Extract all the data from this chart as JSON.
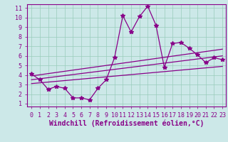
{
  "title": "",
  "xlabel": "Windchill (Refroidissement éolien,°C)",
  "bg_color": "#cce8e8",
  "line_color": "#880088",
  "xlim": [
    -0.5,
    23.4
  ],
  "ylim": [
    0.7,
    11.4
  ],
  "xticks": [
    0,
    1,
    2,
    3,
    4,
    5,
    6,
    7,
    8,
    9,
    10,
    11,
    12,
    13,
    14,
    15,
    16,
    17,
    18,
    19,
    20,
    21,
    22,
    23
  ],
  "yticks": [
    1,
    2,
    3,
    4,
    5,
    6,
    7,
    8,
    9,
    10,
    11
  ],
  "main_x": [
    0,
    1,
    2,
    3,
    4,
    5,
    6,
    7,
    8,
    9,
    10,
    11,
    12,
    13,
    14,
    15,
    16,
    17,
    18,
    19,
    20,
    21,
    22,
    23
  ],
  "main_y": [
    4.1,
    3.5,
    2.5,
    2.8,
    2.6,
    1.6,
    1.6,
    1.4,
    2.6,
    3.5,
    5.8,
    10.2,
    8.5,
    10.1,
    11.2,
    9.2,
    4.8,
    7.3,
    7.4,
    6.8,
    6.1,
    5.3,
    5.8,
    5.6
  ],
  "line1_x": [
    0,
    23
  ],
  "line1_y": [
    3.1,
    4.9
  ],
  "line2_x": [
    0,
    23
  ],
  "line2_y": [
    3.5,
    6.0
  ],
  "line3_x": [
    0,
    23
  ],
  "line3_y": [
    3.9,
    6.7
  ],
  "marker": "*",
  "markersize": 4,
  "linewidth": 0.9,
  "grid_color": "#99ccbb",
  "tick_fontsize": 6,
  "xlabel_fontsize": 7,
  "spine_color": "#880088"
}
